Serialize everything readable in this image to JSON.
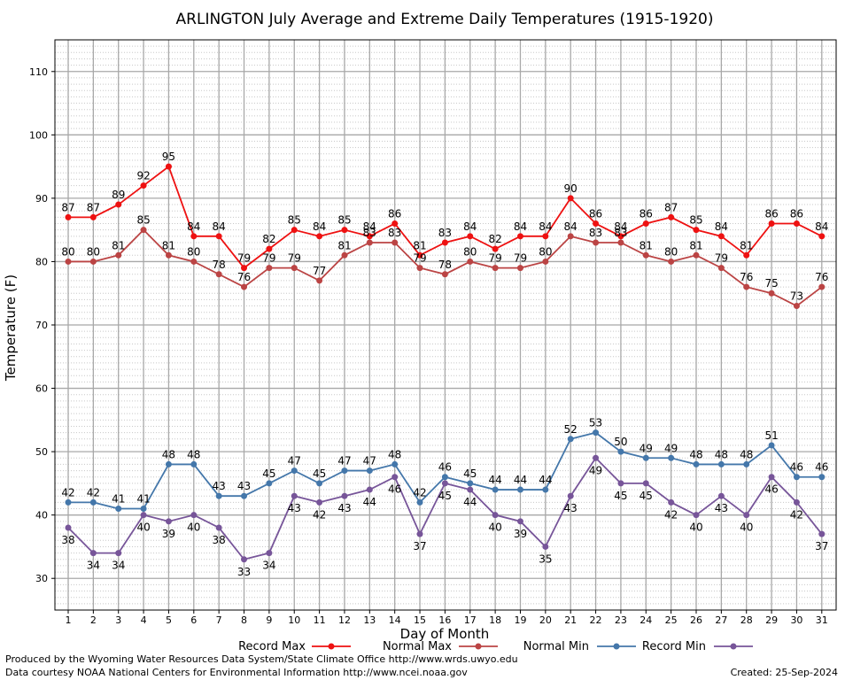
{
  "chart_data": {
    "type": "line",
    "title": "ARLINGTON July Average and Extreme Daily Temperatures (1915-1920)",
    "xlabel": "Day of Month",
    "ylabel": "Temperature (F)",
    "x": [
      1,
      2,
      3,
      4,
      5,
      6,
      7,
      8,
      9,
      10,
      11,
      12,
      13,
      14,
      15,
      16,
      17,
      18,
      19,
      20,
      21,
      22,
      23,
      24,
      25,
      26,
      27,
      28,
      29,
      30,
      31
    ],
    "ylim": [
      25,
      115
    ],
    "yticks": [
      30,
      40,
      50,
      60,
      70,
      80,
      90,
      100,
      110
    ],
    "grid": true,
    "legend_position": "bottom",
    "series": [
      {
        "name": "Record Max",
        "color": "#ee1111",
        "values": [
          87,
          87,
          89,
          92,
          95,
          84,
          84,
          79,
          82,
          85,
          84,
          85,
          84,
          86,
          81,
          83,
          84,
          82,
          84,
          84,
          90,
          86,
          84,
          86,
          87,
          85,
          84,
          81,
          86,
          86,
          84
        ]
      },
      {
        "name": "Normal Max",
        "color": "#bb4444",
        "values": [
          80,
          80,
          81,
          85,
          81,
          80,
          78,
          76,
          79,
          79,
          77,
          81,
          83,
          83,
          79,
          78,
          80,
          79,
          79,
          80,
          84,
          83,
          83,
          81,
          80,
          81,
          79,
          76,
          75,
          73,
          76
        ]
      },
      {
        "name": "Normal Min",
        "color": "#4477aa",
        "values": [
          42,
          42,
          41,
          41,
          48,
          48,
          43,
          43,
          45,
          47,
          45,
          47,
          47,
          48,
          42,
          46,
          45,
          44,
          44,
          44,
          52,
          53,
          50,
          49,
          49,
          48,
          48,
          48,
          51,
          46,
          46
        ]
      },
      {
        "name": "Record Min",
        "color": "#775599",
        "values": [
          38,
          34,
          34,
          40,
          39,
          40,
          38,
          33,
          34,
          43,
          42,
          43,
          44,
          46,
          37,
          45,
          44,
          40,
          39,
          35,
          43,
          49,
          45,
          45,
          42,
          40,
          43,
          40,
          46,
          42,
          37
        ]
      }
    ]
  },
  "footer": {
    "produced_by": "Produced by the Wyoming Water Resources Data System/State Climate Office http://www.wrds.uwyo.edu",
    "courtesy": "Data courtesy NOAA National Centers for Environmental Information http://www.ncei.noaa.gov",
    "created": "Created:  25-Sep-2024"
  }
}
